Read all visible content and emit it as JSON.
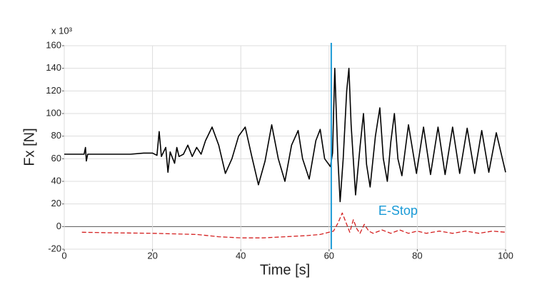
{
  "chart_data": {
    "type": "line",
    "y_multiplier": "x 10³",
    "x_label": "Time [s]",
    "y_label": "Fx [N]",
    "xlim": [
      0,
      100
    ],
    "xticks": [
      0,
      20,
      40,
      60,
      80,
      100
    ],
    "ylim": [
      -20,
      160
    ],
    "yticks": [
      -20,
      0,
      20,
      40,
      60,
      80,
      100,
      120,
      140,
      160
    ],
    "grid": true,
    "series": [
      {
        "color": "#000000",
        "dash": "solid",
        "x": [
          0,
          4.5,
          4.8,
          5,
          5.3,
          10,
          15,
          18,
          20,
          21,
          21.5,
          22,
          23,
          23.5,
          24,
          25,
          25.5,
          26,
          27,
          28,
          29,
          30,
          31,
          32,
          33.5,
          35,
          36.5,
          38,
          39.5,
          41,
          42.5,
          44,
          45.5,
          47,
          48.5,
          50,
          51.5,
          53,
          54,
          55.5,
          57,
          58,
          59,
          60.3,
          60.8,
          61.3,
          62,
          62.5,
          63.2,
          64,
          64.5,
          65,
          66,
          67,
          67.8,
          68.5,
          69.3,
          70.5,
          71.5,
          72.3,
          73.2,
          74,
          74.8,
          75.6,
          76.5,
          78,
          79.8,
          81.4,
          83,
          84.7,
          86.3,
          88,
          89.6,
          91.3,
          93,
          94.6,
          96.2,
          97.9,
          100
        ],
        "values": [
          64,
          64,
          70,
          58,
          64,
          64,
          64,
          65,
          65,
          63,
          84,
          62,
          70,
          48,
          66,
          56,
          70,
          62,
          64,
          72,
          62,
          70,
          64,
          76,
          88,
          72,
          47,
          60,
          80,
          88,
          62,
          37,
          58,
          90,
          60,
          40,
          72,
          85,
          60,
          42,
          76,
          86,
          60,
          53,
          65,
          140,
          60,
          22,
          60,
          120,
          140,
          90,
          28,
          70,
          100,
          55,
          35,
          80,
          105,
          60,
          40,
          75,
          100,
          60,
          45,
          90,
          47,
          88,
          46,
          88,
          46,
          88,
          47,
          87,
          47,
          85,
          48,
          83,
          48
        ]
      },
      {
        "color": "#d42020",
        "dash": "dashed",
        "x": [
          4,
          10,
          20,
          30,
          35,
          40,
          45,
          50,
          55,
          58,
          60,
          61,
          62,
          63,
          64,
          64.7,
          65.5,
          66.3,
          67,
          68,
          69,
          70,
          72,
          74,
          76,
          78,
          80,
          82,
          85,
          88,
          91,
          94,
          97,
          100
        ],
        "values": [
          -5,
          -5.5,
          -6,
          -7,
          -9,
          -10,
          -10,
          -9,
          -8,
          -7,
          -5,
          -4,
          3,
          12,
          2,
          -5,
          6,
          -2,
          -6,
          2,
          -4,
          -6,
          -3,
          -6,
          -3,
          -6,
          -4,
          -6,
          -4,
          -6,
          -4,
          -6,
          -4,
          -5
        ]
      }
    ],
    "annotation": {
      "x": 60.5,
      "label": "E-Stop",
      "color": "#1a9ad6"
    }
  }
}
